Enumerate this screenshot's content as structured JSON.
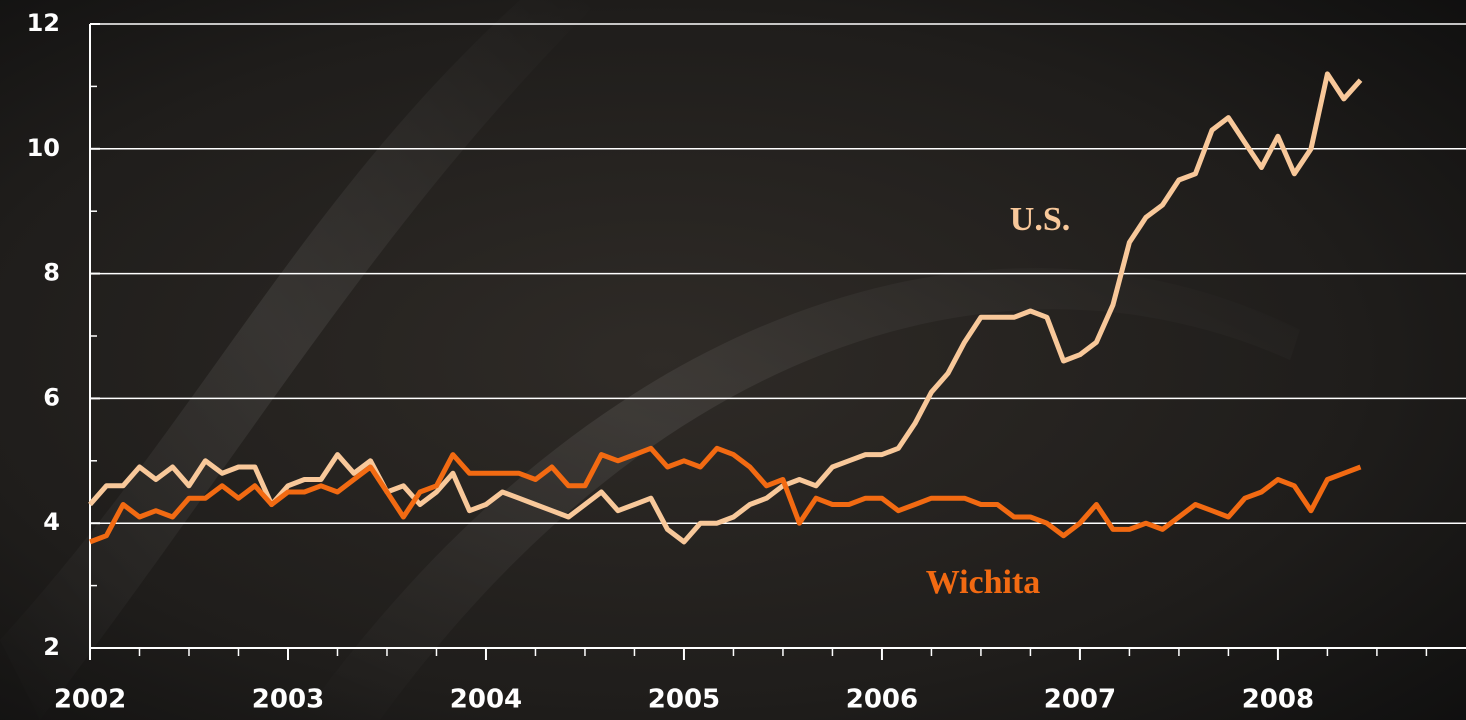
{
  "chart_data": {
    "type": "line",
    "x": [
      2002,
      2002.083,
      2002.167,
      2002.25,
      2002.333,
      2002.417,
      2002.5,
      2002.583,
      2002.667,
      2002.75,
      2002.833,
      2002.917,
      2003,
      2003.083,
      2003.167,
      2003.25,
      2003.333,
      2003.417,
      2003.5,
      2003.583,
      2003.667,
      2003.75,
      2003.833,
      2003.917,
      2004,
      2004.083,
      2004.167,
      2004.25,
      2004.333,
      2004.417,
      2004.5,
      2004.583,
      2004.667,
      2004.75,
      2004.833,
      2004.917,
      2005,
      2005.083,
      2005.167,
      2005.25,
      2005.333,
      2005.417,
      2005.5,
      2005.583,
      2005.667,
      2005.75,
      2005.833,
      2005.917,
      2006,
      2006.083,
      2006.167,
      2006.25,
      2006.333,
      2006.417,
      2006.5,
      2006.583,
      2006.667,
      2006.75,
      2006.833,
      2006.917,
      2007,
      2007.083,
      2007.167,
      2007.25,
      2007.333,
      2007.417,
      2007.5,
      2007.583,
      2007.667,
      2007.75,
      2007.833,
      2007.917,
      2008,
      2008.083,
      2008.167,
      2008.25,
      2008.333,
      2008.417
    ],
    "series": [
      {
        "name": "U.S.",
        "color": "#f8c89a",
        "values": [
          4.3,
          4.6,
          4.6,
          4.9,
          4.7,
          4.9,
          4.6,
          5.0,
          4.8,
          4.9,
          4.9,
          4.3,
          4.6,
          4.7,
          4.7,
          5.1,
          4.8,
          5.0,
          4.5,
          4.6,
          4.3,
          4.5,
          4.8,
          4.2,
          4.3,
          4.5,
          4.4,
          4.3,
          4.2,
          4.1,
          4.3,
          4.5,
          4.2,
          4.3,
          4.4,
          3.9,
          3.7,
          4.0,
          4.0,
          4.1,
          4.3,
          4.4,
          4.6,
          4.7,
          4.6,
          4.9,
          5.0,
          5.1,
          5.1,
          5.2,
          5.6,
          6.1,
          6.4,
          6.9,
          7.3,
          7.3,
          7.3,
          7.4,
          7.3,
          6.6,
          6.7,
          6.9,
          7.5,
          8.5,
          8.9,
          9.1,
          9.5,
          9.6,
          10.3,
          10.5,
          10.1,
          9.7,
          10.2,
          9.6,
          10.0,
          11.2,
          10.8,
          11.1
        ]
      },
      {
        "name": "Wichita",
        "color": "#f26a12",
        "values": [
          3.7,
          3.8,
          4.3,
          4.1,
          4.2,
          4.1,
          4.4,
          4.4,
          4.6,
          4.4,
          4.6,
          4.3,
          4.5,
          4.5,
          4.6,
          4.5,
          4.7,
          4.9,
          4.5,
          4.1,
          4.5,
          4.6,
          5.1,
          4.8,
          4.8,
          4.8,
          4.8,
          4.7,
          4.9,
          4.6,
          4.6,
          5.1,
          5.0,
          5.1,
          5.2,
          4.9,
          5.0,
          4.9,
          5.2,
          5.1,
          4.9,
          4.6,
          4.7,
          4.0,
          4.4,
          4.3,
          4.3,
          4.4,
          4.4,
          4.2,
          4.3,
          4.4,
          4.4,
          4.4,
          4.3,
          4.3,
          4.1,
          4.1,
          4.0,
          3.8,
          4.0,
          4.3,
          3.9,
          3.9,
          4.0,
          3.9,
          4.1,
          4.3,
          4.2,
          4.1,
          4.4,
          4.5,
          4.7,
          4.6,
          4.2,
          4.7,
          4.8,
          4.9
        ]
      }
    ],
    "xlim": [
      2002,
      2008.95
    ],
    "xticks": [
      2002,
      2003,
      2004,
      2005,
      2006,
      2007,
      2008
    ],
    "xminorticks": [
      2002.25,
      2002.5,
      2002.75,
      2003.25,
      2003.5,
      2003.75,
      2004.25,
      2004.5,
      2004.75,
      2005.25,
      2005.5,
      2005.75,
      2006.25,
      2006.5,
      2006.75,
      2007.25,
      2007.5,
      2007.75,
      2008.25,
      2008.5,
      2008.75
    ],
    "ylim": [
      2,
      12
    ],
    "yticks": [
      2,
      4,
      6,
      8,
      10,
      12
    ],
    "yminorticks": [
      3,
      5,
      7,
      9,
      11
    ],
    "grid": true
  }
}
